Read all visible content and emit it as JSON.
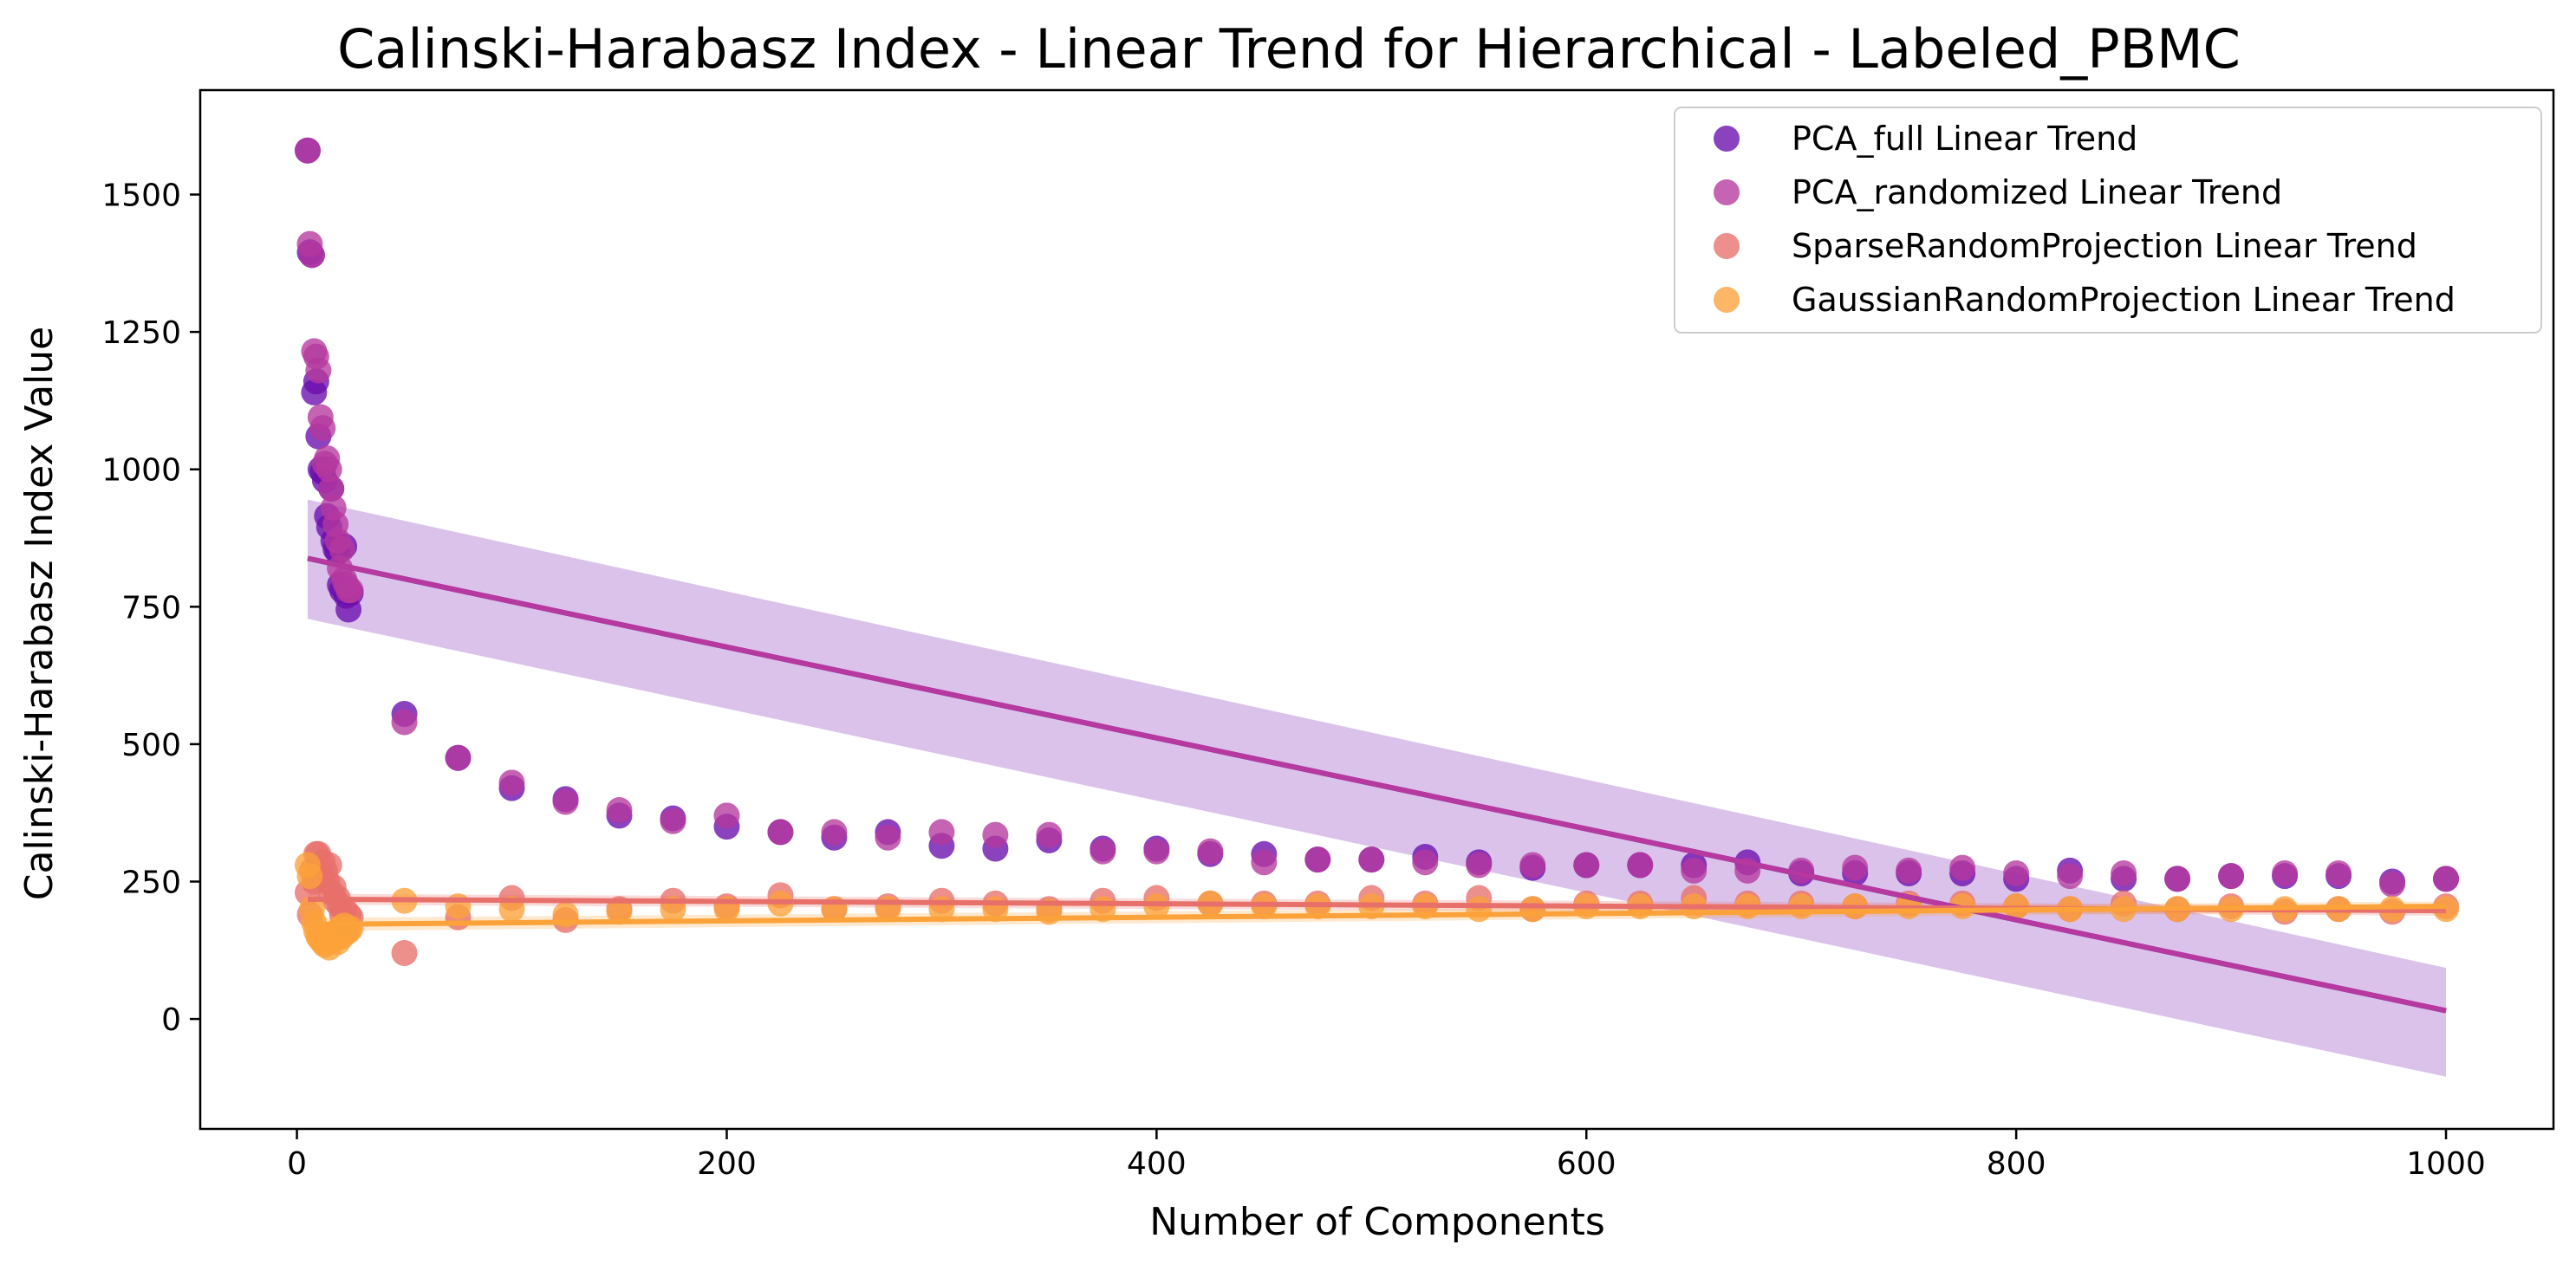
{
  "chart_data": {
    "type": "scatter",
    "title": "Calinski-Harabasz Index - Linear Trend for Hierarchical - Labeled_PBMC",
    "xlabel": "Number of Components",
    "ylabel": "Calinski-Harabasz Index Value",
    "xlim": [
      -45,
      1050
    ],
    "ylim": [
      -200,
      1690
    ],
    "xticks": [
      0,
      200,
      400,
      600,
      800,
      1000
    ],
    "yticks": [
      0,
      250,
      500,
      750,
      1000,
      1250,
      1500
    ],
    "grid": false,
    "legend_position": "top-right",
    "series": [
      {
        "name": "PCA_full Linear Trend",
        "color": "#6a0dad",
        "x": [
          5,
          6,
          7,
          8,
          9,
          10,
          11,
          12,
          13,
          14,
          15,
          16,
          17,
          18,
          19,
          20,
          21,
          22,
          23,
          24,
          25,
          50,
          75,
          100,
          125,
          150,
          175,
          200,
          225,
          250,
          275,
          300,
          325,
          350,
          375,
          400,
          425,
          450,
          475,
          500,
          525,
          550,
          575,
          600,
          625,
          650,
          675,
          700,
          725,
          750,
          775,
          800,
          825,
          850,
          875,
          900,
          925,
          950,
          975,
          1000
        ],
        "y": [
          1580,
          1395,
          1390,
          1140,
          1160,
          1060,
          1000,
          995,
          980,
          915,
          895,
          965,
          870,
          855,
          850,
          790,
          780,
          860,
          770,
          745,
          775,
          555,
          475,
          420,
          400,
          370,
          365,
          350,
          340,
          330,
          340,
          315,
          310,
          325,
          310,
          310,
          300,
          300,
          290,
          290,
          295,
          285,
          275,
          280,
          280,
          280,
          285,
          265,
          265,
          265,
          265,
          255,
          270,
          255,
          255,
          260,
          260,
          260,
          250,
          255
        ],
        "trend": {
          "start": [
            5,
            838
          ],
          "end": [
            1000,
            15
          ],
          "ci_start": [
            728,
            945
          ],
          "ci_end": [
            -105,
            93
          ]
        }
      },
      {
        "name": "PCA_randomized Linear Trend",
        "color": "#b5399e",
        "x": [
          5,
          6,
          7,
          8,
          9,
          10,
          11,
          12,
          13,
          14,
          15,
          16,
          17,
          18,
          19,
          20,
          21,
          22,
          23,
          24,
          25,
          50,
          75,
          100,
          125,
          150,
          175,
          200,
          225,
          250,
          275,
          300,
          325,
          350,
          375,
          400,
          425,
          450,
          475,
          500,
          525,
          550,
          575,
          600,
          625,
          650,
          675,
          700,
          725,
          750,
          775,
          800,
          825,
          850,
          875,
          900,
          925,
          950,
          975,
          1000
        ],
        "y": [
          1580,
          1410,
          1390,
          1215,
          1205,
          1180,
          1095,
          1075,
          1010,
          1020,
          1000,
          965,
          930,
          900,
          870,
          820,
          855,
          800,
          790,
          780,
          780,
          540,
          475,
          430,
          395,
          380,
          360,
          370,
          340,
          340,
          330,
          340,
          335,
          335,
          305,
          305,
          305,
          285,
          290,
          290,
          285,
          280,
          280,
          280,
          280,
          270,
          270,
          270,
          275,
          270,
          275,
          265,
          260,
          265,
          255,
          260,
          265,
          265,
          245,
          255
        ],
        "trend": {
          "start": [
            5,
            838
          ],
          "end": [
            1000,
            15
          ]
        }
      },
      {
        "name": "SparseRandomProjection Linear Trend",
        "color": "#e8706a",
        "x": [
          5,
          6,
          7,
          8,
          9,
          10,
          11,
          12,
          13,
          14,
          15,
          16,
          17,
          18,
          19,
          20,
          21,
          22,
          23,
          24,
          25,
          50,
          75,
          100,
          125,
          150,
          175,
          200,
          225,
          250,
          275,
          300,
          325,
          350,
          375,
          400,
          425,
          450,
          475,
          500,
          525,
          550,
          575,
          600,
          625,
          650,
          675,
          700,
          725,
          750,
          775,
          800,
          825,
          850,
          875,
          900,
          925,
          950,
          975,
          1000
        ],
        "y": [
          230,
          190,
          270,
          250,
          300,
          300,
          260,
          285,
          270,
          250,
          280,
          230,
          240,
          215,
          220,
          205,
          190,
          200,
          175,
          190,
          185,
          120,
          185,
          220,
          180,
          200,
          215,
          205,
          225,
          200,
          205,
          215,
          210,
          200,
          215,
          220,
          210,
          210,
          210,
          220,
          210,
          220,
          200,
          210,
          210,
          220,
          210,
          210,
          205,
          210,
          210,
          205,
          200,
          210,
          200,
          205,
          195,
          200,
          195,
          205
        ],
        "trend": {
          "start": [
            5,
            218
          ],
          "end": [
            1000,
            197
          ],
          "ci_start": [
            208,
            228
          ],
          "ci_end": [
            188,
            206
          ]
        }
      },
      {
        "name": "GaussianRandomProjection Linear Trend",
        "color": "#fba23a",
        "x": [
          5,
          6,
          7,
          8,
          9,
          10,
          11,
          12,
          13,
          14,
          15,
          16,
          17,
          18,
          19,
          20,
          21,
          22,
          23,
          24,
          25,
          50,
          75,
          100,
          125,
          150,
          175,
          200,
          225,
          250,
          275,
          300,
          325,
          350,
          375,
          400,
          425,
          450,
          475,
          500,
          525,
          550,
          575,
          600,
          625,
          650,
          675,
          700,
          725,
          750,
          775,
          800,
          825,
          850,
          875,
          900,
          925,
          950,
          975,
          1000
        ],
        "y": [
          280,
          260,
          200,
          175,
          160,
          150,
          145,
          140,
          135,
          140,
          130,
          145,
          155,
          150,
          140,
          165,
          150,
          170,
          160,
          160,
          165,
          215,
          205,
          200,
          190,
          195,
          200,
          200,
          210,
          200,
          200,
          200,
          200,
          195,
          200,
          205,
          210,
          205,
          205,
          205,
          205,
          200,
          200,
          205,
          205,
          205,
          205,
          205,
          205,
          205,
          205,
          205,
          200,
          200,
          200,
          200,
          200,
          200,
          200,
          200
        ],
        "trend": {
          "start": [
            5,
            172
          ],
          "end": [
            1000,
            205
          ],
          "ci_start": [
            160,
            184
          ],
          "ci_end": [
            196,
            214
          ]
        }
      }
    ]
  }
}
